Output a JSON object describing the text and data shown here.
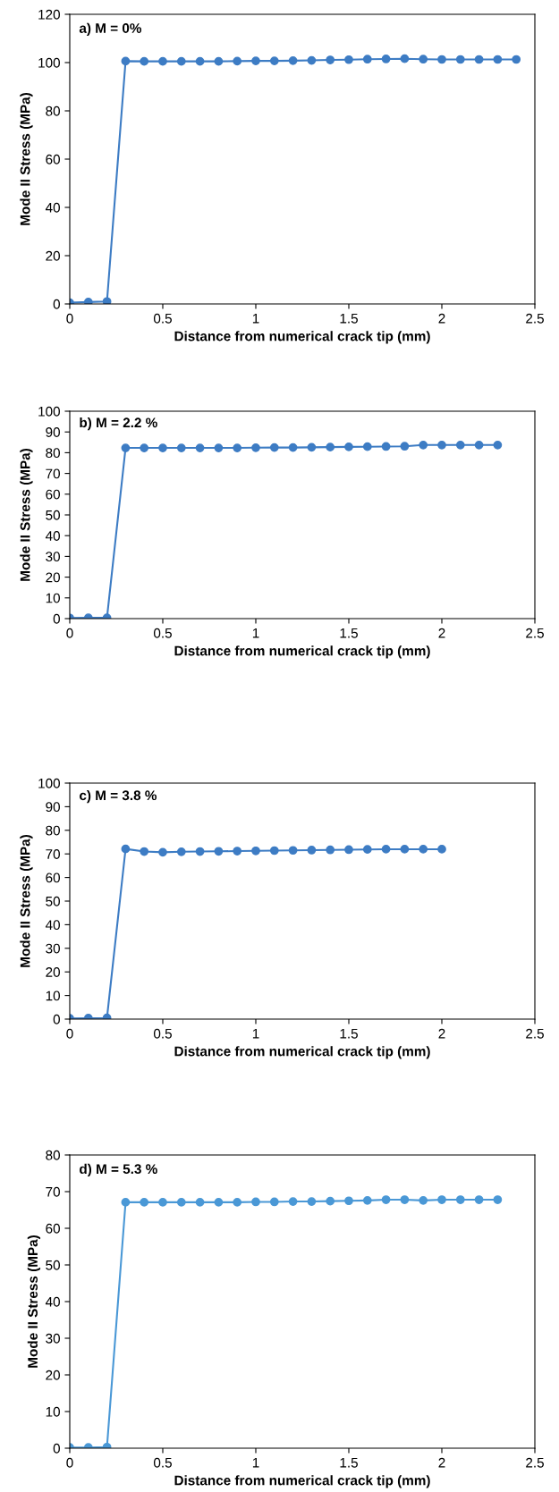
{
  "chart_data": [
    {
      "type": "line",
      "title": "a) M = 0%",
      "xlabel": "Distance from numerical crack tip (mm)",
      "ylabel": "Mode II Stress (MPa)",
      "xlim": [
        0,
        2.5
      ],
      "xticks": [
        0,
        0.5,
        1,
        1.5,
        2,
        2.5
      ],
      "ylim": [
        0,
        120
      ],
      "yticks": [
        0,
        20,
        40,
        60,
        80,
        100,
        120
      ],
      "marker": "circle",
      "line_style": "solid",
      "grid": false,
      "legend": false,
      "series": [
        {
          "color": "#3d7cc4",
          "x": [
            0,
            0.1,
            0.2,
            0.3,
            0.4,
            0.5,
            0.6,
            0.7,
            0.8,
            0.9,
            1.0,
            1.1,
            1.2,
            1.3,
            1.4,
            1.5,
            1.6,
            1.7,
            1.8,
            1.9,
            2.0,
            2.1,
            2.2,
            2.3,
            2.4
          ],
          "values": [
            0.5,
            0.8,
            1,
            100.6,
            100.5,
            100.5,
            100.5,
            100.5,
            100.5,
            100.6,
            100.7,
            100.7,
            100.8,
            100.9,
            101.1,
            101.2,
            101.4,
            101.5,
            101.6,
            101.4,
            101.3,
            101.3,
            101.3,
            101.3,
            101.3
          ]
        }
      ]
    },
    {
      "type": "line",
      "title": "b) M = 2.2 %",
      "xlabel": "Distance from numerical crack tip (mm)",
      "ylabel": "Mode II Stress (MPa)",
      "xlim": [
        0,
        2.5
      ],
      "xticks": [
        0,
        0.5,
        1,
        1.5,
        2,
        2.5
      ],
      "ylim": [
        0,
        100
      ],
      "yticks": [
        0,
        10,
        20,
        30,
        40,
        50,
        60,
        70,
        80,
        90,
        100
      ],
      "marker": "circle",
      "line_style": "solid",
      "grid": false,
      "legend": false,
      "series": [
        {
          "color": "#3d7cc4",
          "x": [
            0,
            0.1,
            0.2,
            0.3,
            0.4,
            0.5,
            0.6,
            0.7,
            0.8,
            0.9,
            1.0,
            1.1,
            1.2,
            1.3,
            1.4,
            1.5,
            1.6,
            1.7,
            1.8,
            1.9,
            2.0,
            2.1,
            2.2,
            2.3
          ],
          "values": [
            0.3,
            0.4,
            0.4,
            82.3,
            82.3,
            82.3,
            82.3,
            82.3,
            82.3,
            82.3,
            82.4,
            82.5,
            82.5,
            82.6,
            82.7,
            82.8,
            82.9,
            83.0,
            83.1,
            83.7,
            83.7,
            83.7,
            83.7,
            83.7
          ]
        }
      ]
    },
    {
      "type": "line",
      "title": "c) M = 3.8 %",
      "xlabel": "Distance from numerical crack tip (mm)",
      "ylabel": "Mode II Stress (MPa)",
      "xlim": [
        0,
        2.5
      ],
      "xticks": [
        0,
        0.5,
        1,
        1.5,
        2,
        2.5
      ],
      "ylim": [
        0,
        100
      ],
      "yticks": [
        0,
        10,
        20,
        30,
        40,
        50,
        60,
        70,
        80,
        90,
        100
      ],
      "marker": "circle",
      "line_style": "solid",
      "grid": false,
      "legend": false,
      "series": [
        {
          "color": "#3d7cc4",
          "x": [
            0,
            0.1,
            0.2,
            0.3,
            0.4,
            0.5,
            0.6,
            0.7,
            0.8,
            0.9,
            1.0,
            1.1,
            1.2,
            1.3,
            1.4,
            1.5,
            1.6,
            1.7,
            1.8,
            1.9,
            2.0
          ],
          "values": [
            0.3,
            0.4,
            0.5,
            72.1,
            71.0,
            70.7,
            70.9,
            71.0,
            71.1,
            71.2,
            71.3,
            71.4,
            71.5,
            71.6,
            71.7,
            71.8,
            71.9,
            72.0,
            72.0,
            72.0,
            72.0
          ]
        }
      ]
    },
    {
      "type": "line",
      "title": "d) M = 5.3 %",
      "xlabel": "Distance from numerical crack tip (mm)",
      "ylabel": "Mode II Stress (MPa)",
      "xlim": [
        0,
        2.5
      ],
      "xticks": [
        0,
        0.5,
        1,
        1.5,
        2,
        2.5
      ],
      "ylim": [
        0,
        80
      ],
      "yticks": [
        0,
        10,
        20,
        30,
        40,
        50,
        60,
        70,
        80
      ],
      "marker": "circle",
      "line_style": "solid",
      "grid": false,
      "legend": false,
      "series": [
        {
          "color": "#4a98d6",
          "x": [
            0,
            0.1,
            0.2,
            0.3,
            0.4,
            0.5,
            0.6,
            0.7,
            0.8,
            0.9,
            1.0,
            1.1,
            1.2,
            1.3,
            1.4,
            1.5,
            1.6,
            1.7,
            1.8,
            1.9,
            2.0,
            2.1,
            2.2,
            2.3
          ],
          "values": [
            0.2,
            0.2,
            0.3,
            67.1,
            67.1,
            67.1,
            67.1,
            67.1,
            67.1,
            67.1,
            67.2,
            67.2,
            67.3,
            67.3,
            67.4,
            67.5,
            67.6,
            67.8,
            67.8,
            67.6,
            67.8,
            67.8,
            67.8,
            67.8
          ]
        }
      ]
    }
  ]
}
